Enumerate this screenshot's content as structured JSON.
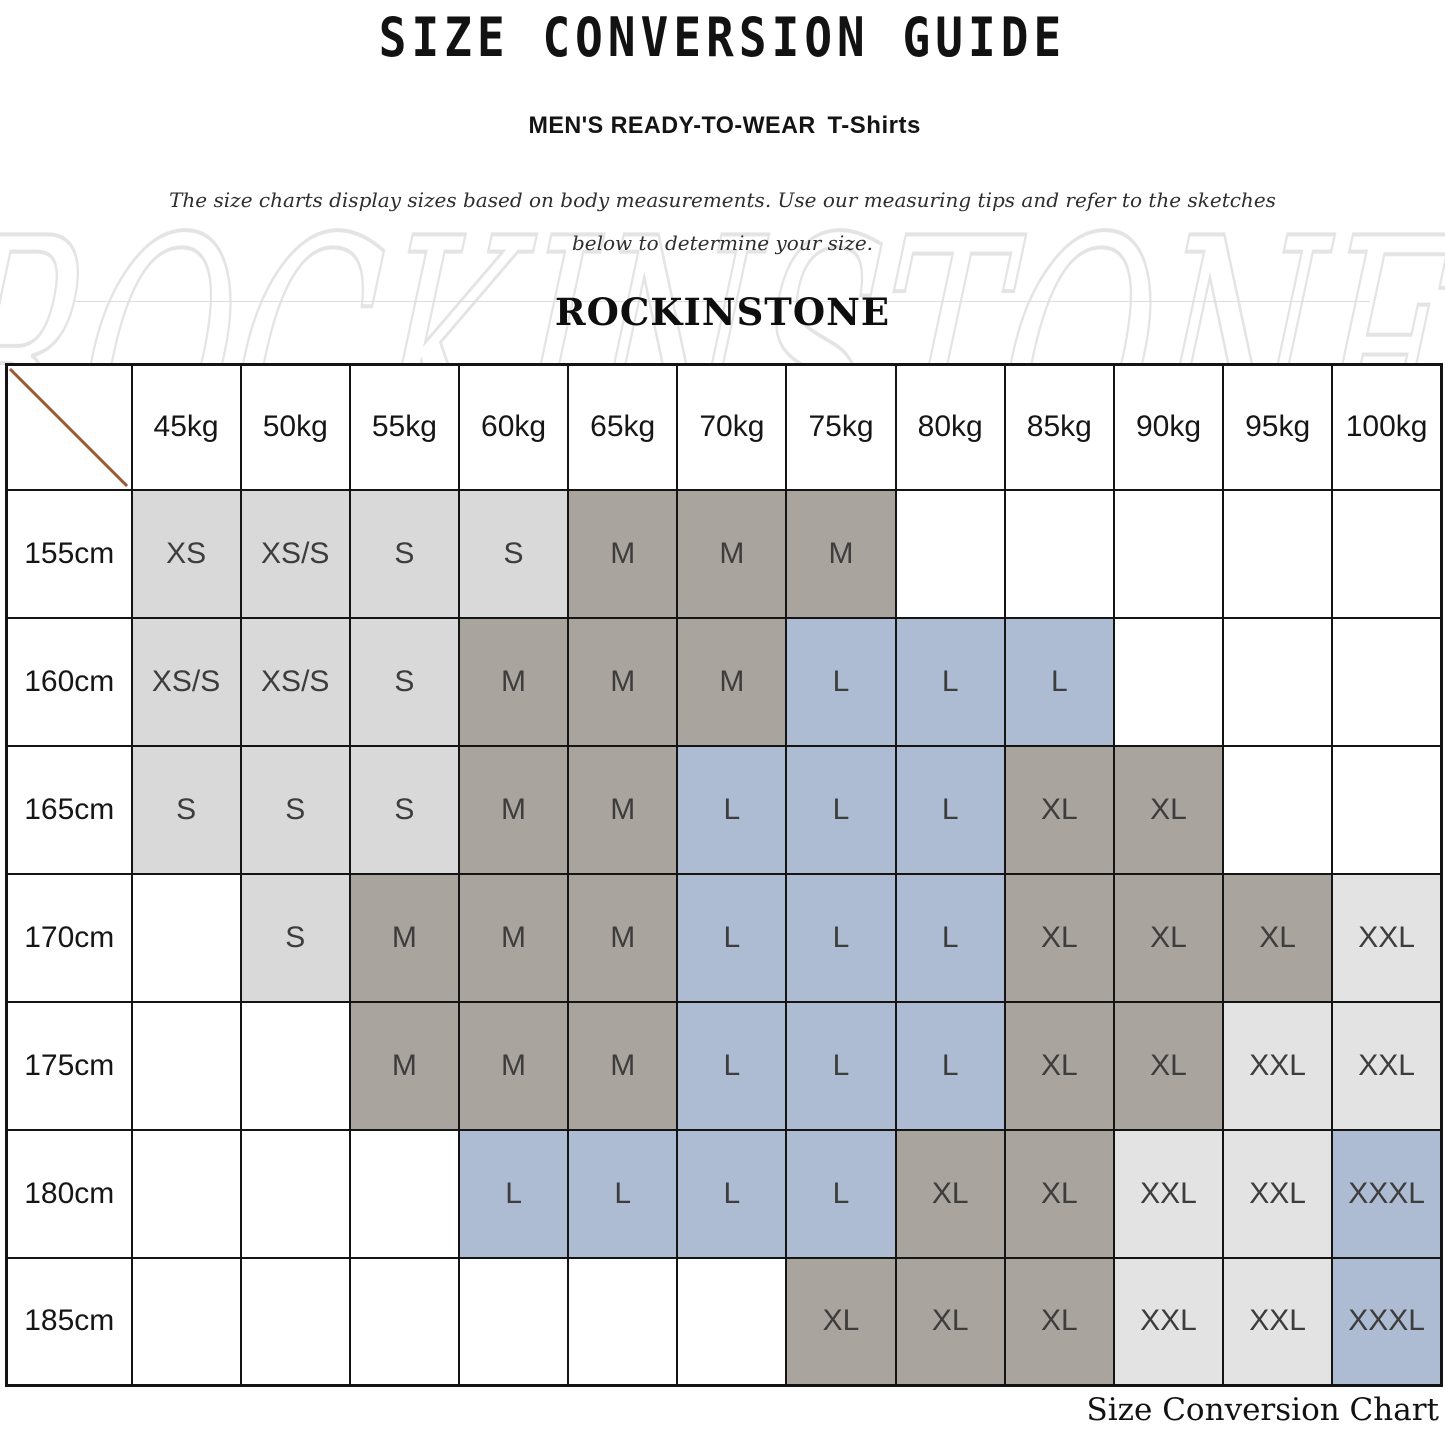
{
  "header": {
    "title": "SIZE CONVERSION GUIDE",
    "subtitle_main": "MEN'S READY-TO-WEAR",
    "subtitle_sub": " T-Shirts",
    "description_line1": "The size charts display sizes based on body measurements. Use our measuring tips and refer to the sketches",
    "description_line2": "below to determine your size.",
    "brand": "ROCKINSTONE",
    "watermark_text": "ROCKINSTONE"
  },
  "footer": {
    "caption": "Size Conversion Chart"
  },
  "chart_data": {
    "type": "table",
    "title": "SIZE CONVERSION GUIDE",
    "row_axis": "height",
    "column_axis": "weight",
    "columns": [
      "45kg",
      "50kg",
      "55kg",
      "60kg",
      "65kg",
      "70kg",
      "75kg",
      "80kg",
      "85kg",
      "90kg",
      "95kg",
      "100kg"
    ],
    "rows": [
      "155cm",
      "160cm",
      "165cm",
      "170cm",
      "175cm",
      "180cm",
      "185cm"
    ],
    "cells": [
      [
        "XS",
        "XS/S",
        "S",
        "S",
        "M",
        "M",
        "M",
        "",
        "",
        "",
        "",
        ""
      ],
      [
        "XS/S",
        "XS/S",
        "S",
        "M",
        "M",
        "M",
        "L",
        "L",
        "L",
        "",
        "",
        ""
      ],
      [
        "S",
        "S",
        "S",
        "M",
        "M",
        "L",
        "L",
        "L",
        "XL",
        "XL",
        "",
        ""
      ],
      [
        "",
        "S",
        "M",
        "M",
        "M",
        "L",
        "L",
        "L",
        "XL",
        "XL",
        "XL",
        "XXL"
      ],
      [
        "",
        "",
        "M",
        "M",
        "M",
        "L",
        "L",
        "L",
        "XL",
        "XL",
        "XXL",
        "XXL"
      ],
      [
        "",
        "",
        "",
        "L",
        "L",
        "L",
        "L",
        "XL",
        "XL",
        "XXL",
        "XXL",
        "XXXL"
      ],
      [
        "",
        "",
        "",
        "",
        "",
        "",
        "XL",
        "XL",
        "XL",
        "XXL",
        "XXL",
        "XXXL"
      ]
    ],
    "cell_colors": [
      [
        "g1",
        "g1",
        "g1",
        "g1",
        "g2",
        "g2",
        "g2",
        "w",
        "w",
        "w",
        "w",
        "w"
      ],
      [
        "g1",
        "g1",
        "g1",
        "g2",
        "g2",
        "g2",
        "b",
        "b",
        "b",
        "w",
        "w",
        "w"
      ],
      [
        "g1",
        "g1",
        "g1",
        "g2",
        "g2",
        "b",
        "b",
        "b",
        "g2",
        "g2",
        "w",
        "w"
      ],
      [
        "w",
        "g1",
        "g2",
        "g2",
        "g2",
        "b",
        "b",
        "b",
        "g2",
        "g2",
        "g2",
        "g3"
      ],
      [
        "w",
        "w",
        "g2",
        "g2",
        "g2",
        "b",
        "b",
        "b",
        "g2",
        "g2",
        "g3",
        "g3"
      ],
      [
        "w",
        "w",
        "w",
        "b",
        "b",
        "b",
        "b",
        "g2",
        "g2",
        "g3",
        "g3",
        "b"
      ],
      [
        "w",
        "w",
        "w",
        "w",
        "w",
        "w",
        "g2",
        "g2",
        "g2",
        "g3",
        "g3",
        "b"
      ]
    ],
    "color_legend": {
      "g1": "#d9d9d9",
      "g2": "#aaa49f",
      "g3": "#e3e3e3",
      "b": "#adbcd2",
      "w": "#ffffff"
    },
    "corner_diagonal_color": "#9a5b33",
    "grid_color": "#141414"
  }
}
